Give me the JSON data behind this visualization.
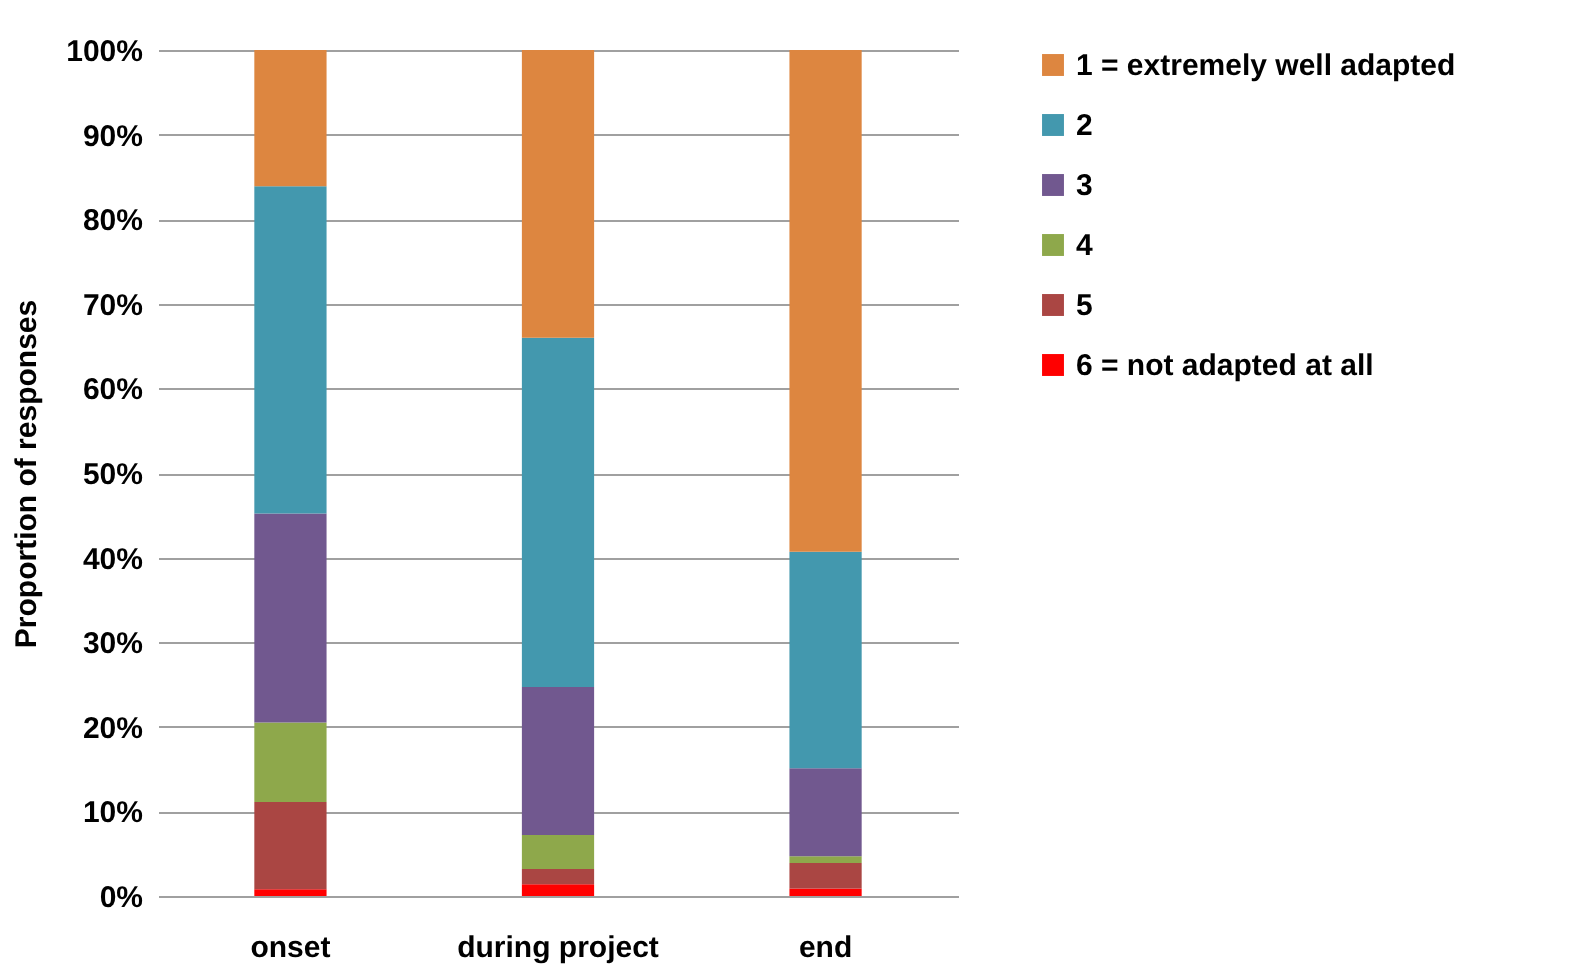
{
  "chart_data": {
    "type": "bar",
    "stacked": true,
    "ylabel": "Proportion of responses",
    "categories": [
      "onset",
      "during project",
      "end"
    ],
    "series": [
      {
        "name": "6 = not adapted at all",
        "color": "#ff0000",
        "values": [
          0.8,
          1.4,
          0.9
        ]
      },
      {
        "name": "5",
        "color": "#aa4643",
        "values": [
          10.3,
          1.8,
          3.0
        ]
      },
      {
        "name": "4",
        "color": "#8ea84b",
        "values": [
          9.4,
          4.0,
          0.8
        ]
      },
      {
        "name": "3",
        "color": "#71588f",
        "values": [
          24.7,
          17.5,
          10.4
        ]
      },
      {
        "name": "2",
        "color": "#4398ae",
        "values": [
          38.7,
          41.3,
          25.6
        ]
      },
      {
        "name": "1 = extremely well adapted",
        "color": "#dd8640",
        "values": [
          16.1,
          34.0,
          59.3
        ]
      }
    ],
    "ylim": [
      0,
      100
    ],
    "yticks": [
      {
        "value": 0,
        "label": "0%"
      },
      {
        "value": 10,
        "label": "10%"
      },
      {
        "value": 20,
        "label": "20%"
      },
      {
        "value": 30,
        "label": "30%"
      },
      {
        "value": 40,
        "label": "40%"
      },
      {
        "value": 50,
        "label": "50%"
      },
      {
        "value": 60,
        "label": "60%"
      },
      {
        "value": 70,
        "label": "70%"
      },
      {
        "value": 80,
        "label": "80%"
      },
      {
        "value": 90,
        "label": "90%"
      },
      {
        "value": 100,
        "label": "100%"
      }
    ],
    "grid": "y",
    "legend": "right"
  }
}
